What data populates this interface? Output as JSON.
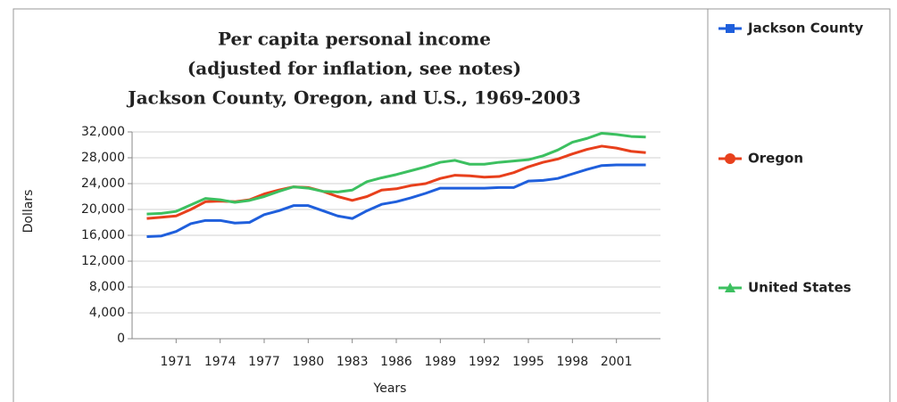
{
  "chart_data": {
    "type": "line",
    "title": [
      "Per capita personal income",
      "(adjusted for inflation, see notes)",
      "Jackson County, Oregon, and U.S., 1969-2003"
    ],
    "xlabel": "Years",
    "ylabel": "Dollars",
    "x": [
      1969,
      1970,
      1971,
      1972,
      1973,
      1974,
      1975,
      1976,
      1977,
      1978,
      1979,
      1980,
      1981,
      1982,
      1983,
      1984,
      1985,
      1986,
      1987,
      1988,
      1989,
      1990,
      1991,
      1992,
      1993,
      1994,
      1995,
      1996,
      1997,
      1998,
      1999,
      2000,
      2001,
      2002,
      2003
    ],
    "xlim": [
      1968,
      2004
    ],
    "xticks": [
      1971,
      1974,
      1977,
      1980,
      1983,
      1986,
      1989,
      1992,
      1995,
      1998,
      2001
    ],
    "ylim": [
      0,
      32000
    ],
    "yticks": [
      0,
      {
        "value": 4000,
        "label": "4,000"
      },
      {
        "value": 8000,
        "label": "8,000"
      },
      {
        "value": 12000,
        "label": "12,000"
      },
      {
        "value": 16000,
        "label": "16,000"
      },
      {
        "value": 20000,
        "label": "20,000"
      },
      {
        "value": 24000,
        "label": "24,000"
      },
      {
        "value": 28000,
        "label": "28,000"
      },
      {
        "value": 32000,
        "label": "32,000"
      }
    ],
    "grid": true,
    "legend": "right",
    "series": [
      {
        "name": "Jackson County",
        "color": "#1f5fdc",
        "marker": "square",
        "values": [
          15800,
          15900,
          16600,
          17800,
          18300,
          18300,
          17900,
          18000,
          19200,
          19800,
          20600,
          20600,
          19800,
          19000,
          18600,
          19800,
          20800,
          21200,
          21800,
          22500,
          23300,
          23300,
          23300,
          23300,
          23400,
          23400,
          24400,
          24500,
          24800,
          25500,
          26200,
          26800,
          26900,
          26900,
          26900
        ]
      },
      {
        "name": "Oregon",
        "color": "#e8401c",
        "marker": "circle",
        "values": [
          18600,
          18800,
          19000,
          20000,
          21200,
          21300,
          21200,
          21500,
          22400,
          23000,
          23500,
          23400,
          22800,
          22000,
          21400,
          22000,
          23000,
          23200,
          23700,
          24000,
          24800,
          25300,
          25200,
          25000,
          25100,
          25700,
          26600,
          27300,
          27800,
          28600,
          29300,
          29800,
          29500,
          29000,
          28800
        ]
      },
      {
        "name": "United States",
        "color": "#3cc060",
        "marker": "triangle",
        "values": [
          19300,
          19400,
          19700,
          20700,
          21700,
          21500,
          21100,
          21400,
          22000,
          22800,
          23500,
          23300,
          22800,
          22700,
          23000,
          24300,
          24900,
          25400,
          26000,
          26600,
          27300,
          27600,
          27000,
          27000,
          27300,
          27500,
          27700,
          28300,
          29200,
          30400,
          31000,
          31800,
          31600,
          31300,
          31200
        ]
      }
    ]
  }
}
